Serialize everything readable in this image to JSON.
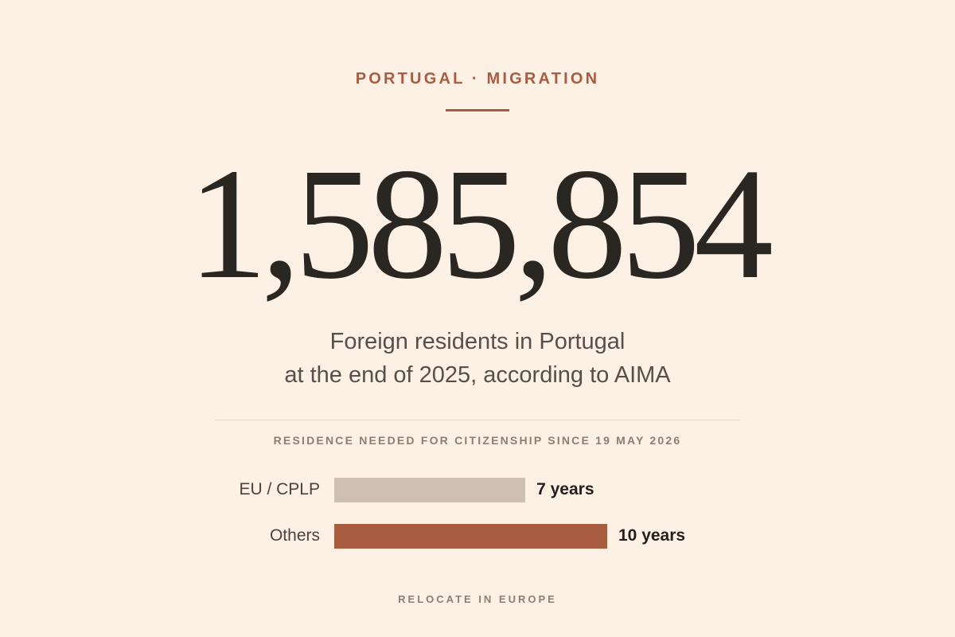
{
  "header": {
    "kicker": "PORTUGAL · MIGRATION"
  },
  "headline": {
    "number": "1,585,854",
    "subtitle_line1": "Foreign residents in Portugal",
    "subtitle_line2": "at the end of 2025, according to AIMA"
  },
  "chart_data": {
    "type": "bar",
    "orientation": "horizontal",
    "title": "RESIDENCE NEEDED FOR CITIZENSHIP SINCE 19 MAY 2026",
    "categories": [
      "EU / CPLP",
      "Others"
    ],
    "values": [
      7,
      10
    ],
    "value_labels": [
      "7 years",
      "10 years"
    ],
    "colors": [
      "#cdbfb4",
      "#a85c40"
    ],
    "xlim": [
      0,
      10
    ],
    "grid": false
  },
  "footer": {
    "brand": "RELOCATE IN EUROPE"
  }
}
